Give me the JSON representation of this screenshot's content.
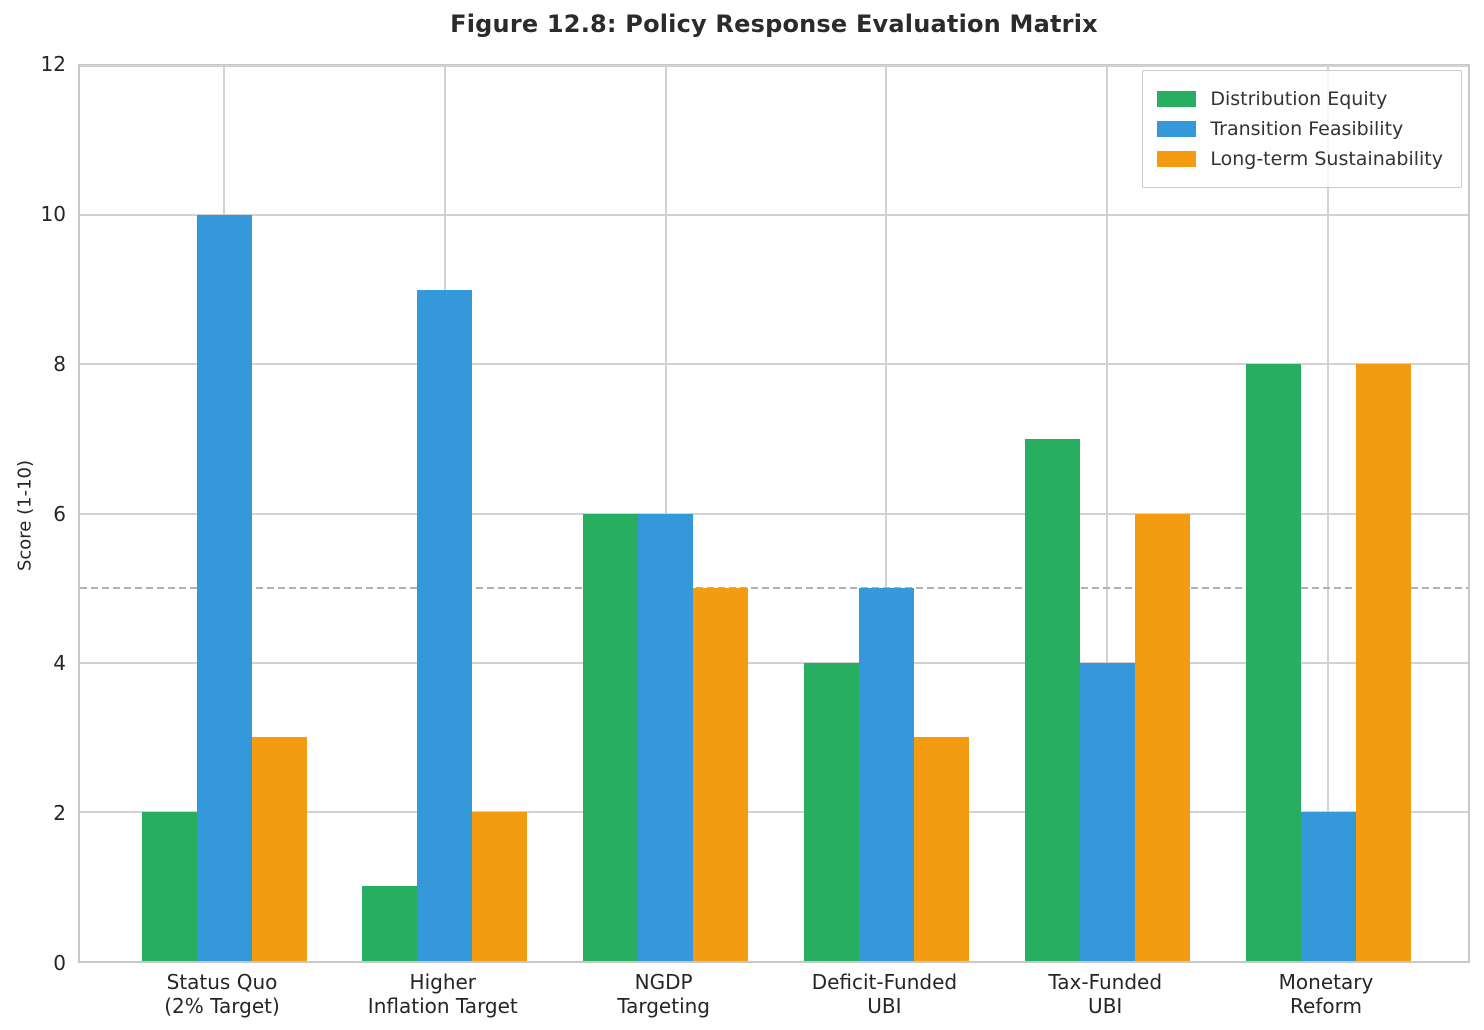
{
  "chart_data": {
    "type": "bar",
    "title": "Figure 12.8: Policy Response Evaluation Matrix",
    "xlabel": "",
    "ylabel": "Score (1-10)",
    "ylim": [
      0,
      12
    ],
    "yticks": [
      0,
      2,
      4,
      6,
      8,
      10,
      12
    ],
    "grid": true,
    "legend_position": "upper right",
    "reference_line_y": 5,
    "categories": [
      "Status Quo\n(2% Target)",
      "Higher\nInflation Target",
      "NGDP\nTargeting",
      "Deficit-Funded\nUBI",
      "Tax-Funded\nUBI",
      "Monetary\nReform"
    ],
    "series": [
      {
        "name": "Distribution Equity",
        "color": "#27ae60",
        "values": [
          2,
          1,
          6,
          4,
          7,
          8
        ]
      },
      {
        "name": "Transition Feasibility",
        "color": "#3498db",
        "values": [
          10,
          9,
          6,
          5,
          4,
          2
        ]
      },
      {
        "name": "Long-term Sustainability",
        "color": "#f39c12",
        "values": [
          3,
          2,
          5,
          3,
          6,
          8
        ]
      }
    ],
    "colors": {
      "grid": "#d2d2d2",
      "spine": "#c8c8c8",
      "reference_line": "#b2b2b2",
      "text": "#262626",
      "background": "#ffffff"
    }
  }
}
